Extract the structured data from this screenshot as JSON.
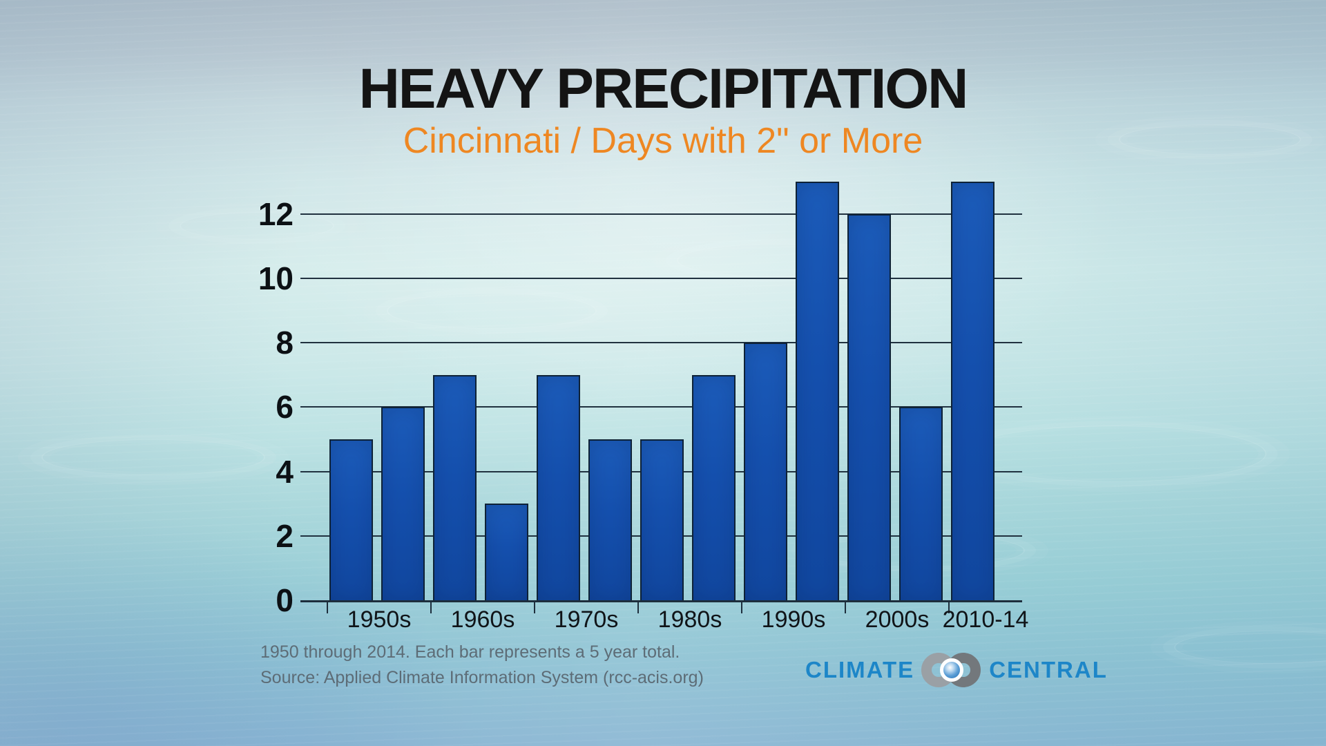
{
  "title": "HEAVY PRECIPITATION",
  "subtitle": "Cincinnati / Days with 2\" or More",
  "chart_data": {
    "type": "bar",
    "title": "HEAVY PRECIPITATION",
    "subtitle": "Cincinnati / Days with 2\" or More",
    "categories": [
      "1950s",
      "1960s",
      "1970s",
      "1980s",
      "1990s",
      "2000s",
      "2010-14"
    ],
    "groups": [
      {
        "label": "1950s",
        "values": [
          5,
          6
        ]
      },
      {
        "label": "1960s",
        "values": [
          7,
          3
        ]
      },
      {
        "label": "1970s",
        "values": [
          7,
          5
        ]
      },
      {
        "label": "1980s",
        "values": [
          5,
          7
        ]
      },
      {
        "label": "1990s",
        "values": [
          8,
          13
        ]
      },
      {
        "label": "2000s",
        "values": [
          12,
          6
        ]
      },
      {
        "label": "2010-14",
        "values": [
          13
        ]
      }
    ],
    "yticks": [
      0,
      2,
      4,
      6,
      8,
      10,
      12
    ],
    "ylim": [
      0,
      13.3
    ],
    "grid": true,
    "legend_position": "none",
    "bar_color": "#1550ae",
    "bar_border_color": "#0e2236",
    "axis_color": "#1d2e3c",
    "label_color": "#101418"
  },
  "footnotes": {
    "line1": "1950 through 2014. Each bar represents a 5 year total.",
    "line2": "Source: Applied Climate Information System (rcc-acis.org)"
  },
  "logo": {
    "left": "CLIMATE",
    "right": "CENTRAL",
    "text_color": "#1d86c8"
  },
  "colors": {
    "title": "#141414",
    "subtitle": "#ee8722"
  }
}
